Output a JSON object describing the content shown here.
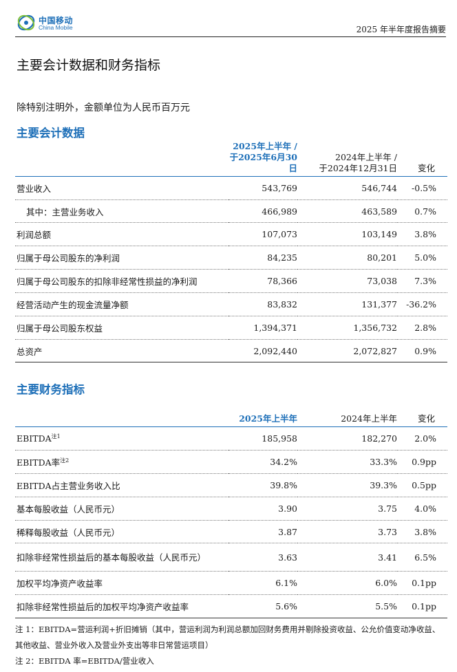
{
  "header": {
    "logo_cn": "中国移动",
    "logo_en": "China Mobile",
    "report_title": "2025 年半年度报告摘要",
    "brand_color": "#1d6fb8"
  },
  "page_title": "主要会计数据和财务指标",
  "unit_note": "除特别注明外，金额单位为人民币百万元",
  "accounting": {
    "title": "主要会计数据",
    "headers": {
      "cur_line1": "2025年上半年 /",
      "cur_line2": "于2025年6月30日",
      "prev_line1": "2024年上半年 /",
      "prev_line2": "于2024年12月31日",
      "change": "变化"
    },
    "rows": [
      {
        "label": "营业收入",
        "cur": "543,769",
        "prev": "546,744",
        "change": "-0.5%"
      },
      {
        "label": "其中：主营业务收入",
        "cur": "466,989",
        "prev": "463,589",
        "change": "0.7%"
      },
      {
        "label": "利润总额",
        "cur": "107,073",
        "prev": "103,149",
        "change": "3.8%"
      },
      {
        "label": "归属于母公司股东的净利润",
        "cur": "84,235",
        "prev": "80,201",
        "change": "5.0%"
      },
      {
        "label": "归属于母公司股东的扣除非经常性损益的净利润",
        "cur": "78,366",
        "prev": "73,038",
        "change": "7.3%"
      },
      {
        "label": "经营活动产生的现金流量净额",
        "cur": "83,832",
        "prev": "131,377",
        "change": "-36.2%"
      },
      {
        "label": "归属于母公司股东权益",
        "cur": "1,394,371",
        "prev": "1,356,732",
        "change": "2.8%"
      },
      {
        "label": "总资产",
        "cur": "2,092,440",
        "prev": "2,072,827",
        "change": "0.9%"
      }
    ]
  },
  "indicators": {
    "title": "主要财务指标",
    "headers": {
      "cur": "2025年上半年",
      "prev": "2024年上半年",
      "change": "变化"
    },
    "rows": [
      {
        "label": "EBITDA",
        "sup": "注1",
        "cur": "185,958",
        "prev": "182,270",
        "change": "2.0%"
      },
      {
        "label": "EBITDA率",
        "sup": "注2",
        "cur": "34.2%",
        "prev": "33.3%",
        "change": "0.9pp"
      },
      {
        "label": "EBITDA占主营业务收入比",
        "cur": "39.8%",
        "prev": "39.3%",
        "change": "0.5pp"
      },
      {
        "label": "基本每股收益（人民币元）",
        "cur": "3.90",
        "prev": "3.75",
        "change": "4.0%"
      },
      {
        "label": "稀释每股收益（人民币元）",
        "cur": "3.87",
        "prev": "3.73",
        "change": "3.8%"
      },
      {
        "label": "扣除非经常性损益后的基本每股收益（人民币元）",
        "cur": "3.63",
        "prev": "3.41",
        "change": "6.5%"
      },
      {
        "label": "加权平均净资产收益率",
        "cur": "6.1%",
        "prev": "6.0%",
        "change": "0.1pp"
      },
      {
        "label": "扣除非经常性损益后的加权平均净资产收益率",
        "cur": "5.6%",
        "prev": "5.5%",
        "change": "0.1pp"
      }
    ]
  },
  "footnotes": {
    "note1": "注 1：EBITDA=营运利润+折旧摊销（其中，营运利润为利润总额加回财务费用并剔除投资收益、公允价值变动净收益、其他收益、营业外收入及营业外支出等非日常营运项目）",
    "note2": "注 2：EBITDA 率=EBITDA/营业收入"
  }
}
